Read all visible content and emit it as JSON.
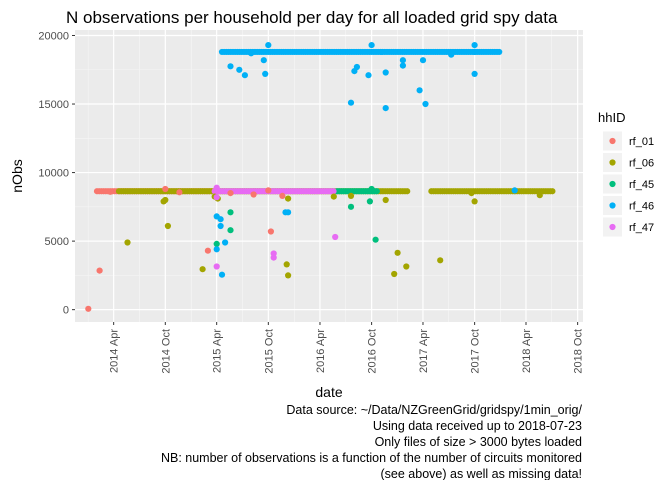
{
  "chart_data": {
    "type": "scatter",
    "title": "N observations per household per day for all loaded grid spy data",
    "xlabel": "date",
    "ylabel": "nObs",
    "xlim": [
      "2013-11-15",
      "2018-10-20"
    ],
    "ylim": [
      -900,
      20400
    ],
    "x_ticks": [
      "2014-04-01",
      "2014-10-01",
      "2015-04-01",
      "2015-10-01",
      "2016-04-01",
      "2016-10-01",
      "2017-04-01",
      "2017-10-01",
      "2018-04-01",
      "2018-10-01"
    ],
    "x_tick_labels": [
      "2014 Apr",
      "2014 Oct",
      "2015 Apr",
      "2015 Oct",
      "2016 Apr",
      "2016 Oct",
      "2017 Apr",
      "2017 Oct",
      "2018 Apr",
      "2018 Oct"
    ],
    "y_ticks": [
      0,
      5000,
      10000,
      15000,
      20000
    ],
    "y_tick_labels": [
      "0",
      "5000",
      "10000",
      "15000",
      "20000"
    ],
    "grid": true,
    "legend": {
      "title": "hhID",
      "position": "right"
    },
    "series": [
      {
        "name": "rf_01",
        "color": "#F8766D",
        "bands": [
          {
            "start": "2014-02-01",
            "end": "2015-03-15",
            "value": 8640
          }
        ],
        "points": [
          [
            "2014-01-01",
            60
          ],
          [
            "2014-02-10",
            2850
          ],
          [
            "2014-03-20",
            8600
          ],
          [
            "2014-10-01",
            8800
          ],
          [
            "2014-11-20",
            8560
          ],
          [
            "2015-03-01",
            4300
          ],
          [
            "2015-05-20",
            8500
          ],
          [
            "2015-08-10",
            8400
          ],
          [
            "2015-10-01",
            8700
          ],
          [
            "2015-10-10",
            5700
          ],
          [
            "2015-11-20",
            8300
          ]
        ]
      },
      {
        "name": "rf_06",
        "color": "#A3A500",
        "bands": [
          {
            "start": "2014-04-20",
            "end": "2017-02-10",
            "value": 8640
          },
          {
            "start": "2017-05-01",
            "end": "2018-07-10",
            "value": 8640
          }
        ],
        "points": [
          [
            "2014-05-20",
            4900
          ],
          [
            "2014-09-25",
            7900
          ],
          [
            "2014-10-01",
            8000
          ],
          [
            "2014-10-10",
            6100
          ],
          [
            "2015-02-10",
            2950
          ],
          [
            "2015-03-25",
            8250
          ],
          [
            "2015-04-05",
            8100
          ],
          [
            "2015-12-10",
            8100
          ],
          [
            "2015-12-05",
            3300
          ],
          [
            "2015-12-10",
            2500
          ],
          [
            "2016-05-20",
            8250
          ],
          [
            "2016-07-20",
            8300
          ],
          [
            "2016-11-20",
            8000
          ],
          [
            "2016-12-20",
            2600
          ],
          [
            "2017-01-01",
            4150
          ],
          [
            "2017-02-01",
            3150
          ],
          [
            "2017-06-01",
            3600
          ],
          [
            "2017-09-20",
            8500
          ],
          [
            "2017-10-01",
            7900
          ],
          [
            "2018-02-20",
            8650
          ],
          [
            "2018-05-20",
            8350
          ]
        ]
      },
      {
        "name": "rf_45",
        "color": "#00BF7D",
        "bands": [
          {
            "start": "2016-06-01",
            "end": "2016-10-25",
            "value": 8640
          }
        ],
        "points": [
          [
            "2015-04-01",
            4800
          ],
          [
            "2015-05-20",
            7100
          ],
          [
            "2015-05-20",
            5800
          ],
          [
            "2016-07-20",
            7500
          ],
          [
            "2016-09-25",
            7900
          ],
          [
            "2016-10-01",
            8800
          ],
          [
            "2016-10-15",
            5100
          ]
        ]
      },
      {
        "name": "rf_46",
        "color": "#00B0F6",
        "bands": [
          {
            "start": "2015-04-20",
            "end": "2017-12-31",
            "value": 18800
          }
        ],
        "points": [
          [
            "2015-04-01",
            6800
          ],
          [
            "2015-04-01",
            4400
          ],
          [
            "2015-04-15",
            6600
          ],
          [
            "2015-04-15",
            6100
          ],
          [
            "2015-04-20",
            2550
          ],
          [
            "2015-05-01",
            4900
          ],
          [
            "2015-05-20",
            17750
          ],
          [
            "2015-06-20",
            17500
          ],
          [
            "2015-07-10",
            17100
          ],
          [
            "2015-08-01",
            18700
          ],
          [
            "2015-09-15",
            18200
          ],
          [
            "2015-09-20",
            17200
          ],
          [
            "2015-10-01",
            19300
          ],
          [
            "2015-12-01",
            7100
          ],
          [
            "2015-12-10",
            7100
          ],
          [
            "2016-07-20",
            15100
          ],
          [
            "2016-08-01",
            17400
          ],
          [
            "2016-08-10",
            17700
          ],
          [
            "2016-09-20",
            17100
          ],
          [
            "2016-10-01",
            19300
          ],
          [
            "2016-11-20",
            14700
          ],
          [
            "2016-11-20",
            17300
          ],
          [
            "2017-01-20",
            18200
          ],
          [
            "2017-01-20",
            17800
          ],
          [
            "2017-03-20",
            16000
          ],
          [
            "2017-04-01",
            18200
          ],
          [
            "2017-04-10",
            15000
          ],
          [
            "2017-07-10",
            18600
          ],
          [
            "2017-10-01",
            19300
          ],
          [
            "2017-10-01",
            17200
          ],
          [
            "2017-10-01",
            18800
          ],
          [
            "2018-02-20",
            8700
          ]
        ]
      },
      {
        "name": "rf_47",
        "color": "#E76BF3",
        "bands": [
          {
            "start": "2015-03-25",
            "end": "2016-05-25",
            "value": 8640
          }
        ],
        "points": [
          [
            "2015-04-01",
            3150
          ],
          [
            "2015-04-01",
            8200
          ],
          [
            "2015-04-01",
            8900
          ],
          [
            "2015-10-20",
            4100
          ],
          [
            "2015-10-20",
            3800
          ],
          [
            "2016-05-25",
            5300
          ]
        ]
      }
    ]
  },
  "caption": [
    "Data source: ~/Data/NZGreenGrid/gridspy/1min_orig/",
    "Using data received up to 2018-07-23",
    "Only files of size > 3000 bytes loaded",
    "NB: number of observations is a function of the number of circuits monitored",
    "(see above) as well as missing data!"
  ]
}
